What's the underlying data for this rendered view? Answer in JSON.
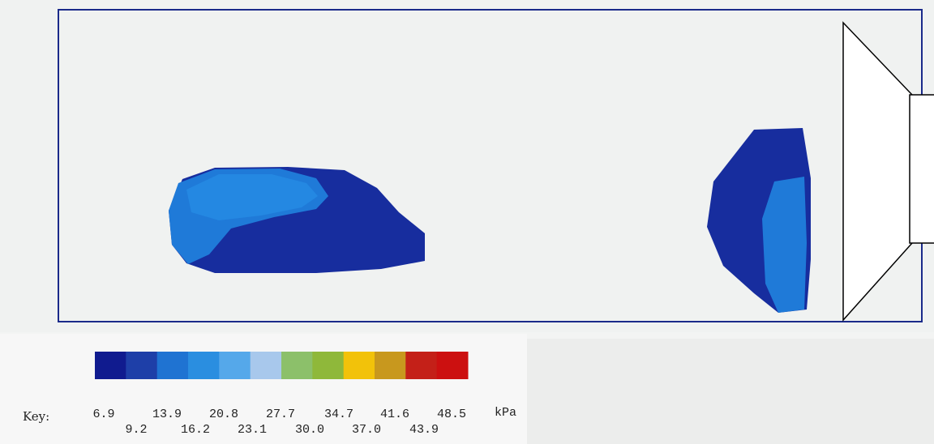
{
  "key": {
    "label": "Key:",
    "unit": "kPa",
    "colors": [
      "#101b8f",
      "#1e3fa8",
      "#1f73d2",
      "#2a8ee0",
      "#55a8ea",
      "#a8c8ec",
      "#8cc06a",
      "#8fb83a",
      "#f2c20a",
      "#c8981e",
      "#c42018",
      "#cc1010"
    ],
    "ticks_top": [
      "6.9",
      "13.9",
      "20.8",
      "27.7",
      "34.7",
      "41.6",
      "48.5"
    ],
    "ticks_bottom": [
      "9.2",
      "16.2",
      "23.1",
      "30.0",
      "37.0",
      "43.9"
    ]
  },
  "regions": {
    "left_outer_color": "#172d9e",
    "left_inner_color": "#1f7ad8",
    "left_core_color": "#2488e2",
    "right_outer_color": "#172d9e",
    "right_inner_color": "#1f7ad8"
  }
}
